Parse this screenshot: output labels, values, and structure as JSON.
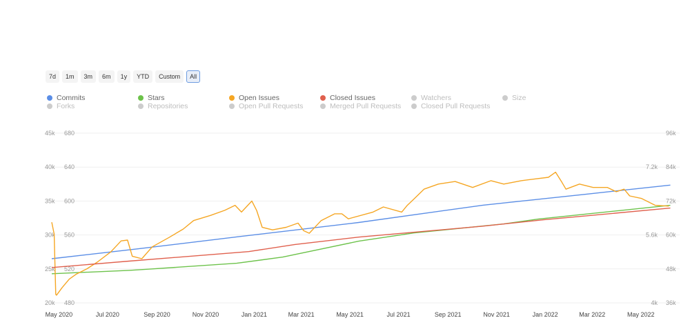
{
  "range_buttons": [
    {
      "label": "7d"
    },
    {
      "label": "1m"
    },
    {
      "label": "3m"
    },
    {
      "label": "6m"
    },
    {
      "label": "1y"
    },
    {
      "label": "YTD"
    },
    {
      "label": "Custom"
    },
    {
      "label": "All",
      "active": true
    }
  ],
  "legend": [
    {
      "label": "Commits",
      "color": "#5b8ee6",
      "active": true
    },
    {
      "label": "Stars",
      "color": "#6cc24a",
      "active": true
    },
    {
      "label": "Open Issues",
      "color": "#f5a623",
      "active": true
    },
    {
      "label": "Closed Issues",
      "color": "#e0604d",
      "active": true
    },
    {
      "label": "Watchers",
      "color": "#cccccc",
      "active": false
    },
    {
      "label": "Size",
      "color": "#cccccc",
      "active": false
    },
    {
      "label": "Forks",
      "color": "#cccccc",
      "active": false
    },
    {
      "label": "Repositories",
      "color": "#cccccc",
      "active": false
    },
    {
      "label": "Open Pull Requests",
      "color": "#cccccc",
      "active": false
    },
    {
      "label": "Merged Pull Requests",
      "color": "#cccccc",
      "active": false
    },
    {
      "label": "Closed Pull Requests",
      "color": "#cccccc",
      "active": false
    }
  ],
  "chart_data": {
    "type": "line",
    "grid": true,
    "xlim": [
      "2020-04-22",
      "2022-06-10"
    ],
    "x_ticks": [
      {
        "date": "2020-05-01",
        "label": "May 2020"
      },
      {
        "date": "2020-07-01",
        "label": "Jul 2020"
      },
      {
        "date": "2020-09-01",
        "label": "Sep 2020"
      },
      {
        "date": "2020-11-01",
        "label": "Nov 2020"
      },
      {
        "date": "2021-01-01",
        "label": "Jan 2021"
      },
      {
        "date": "2021-03-01",
        "label": "Mar 2021"
      },
      {
        "date": "2021-05-01",
        "label": "May 2021"
      },
      {
        "date": "2021-07-01",
        "label": "Jul 2021"
      },
      {
        "date": "2021-09-01",
        "label": "Sep 2021"
      },
      {
        "date": "2021-11-01",
        "label": "Nov 2021"
      },
      {
        "date": "2022-01-01",
        "label": "Jan 2022"
      },
      {
        "date": "2022-03-01",
        "label": "Mar 2022"
      },
      {
        "date": "2022-05-01",
        "label": "May 2022"
      }
    ],
    "axes": {
      "left1": {
        "range": [
          20000,
          45000
        ],
        "ticks": [
          "20k",
          "25k",
          "30k",
          "35k",
          "40k",
          "45k"
        ]
      },
      "left2": {
        "range": [
          480,
          680
        ],
        "ticks": [
          "480",
          "520",
          "560",
          "600",
          "640",
          "680"
        ]
      },
      "right1": {
        "range": [
          4000,
          8800
        ],
        "ticks": [
          "4k",
          "",
          "5.6k",
          "",
          "7.2k",
          ""
        ]
      },
      "right2": {
        "range": [
          36000,
          96000
        ],
        "ticks": [
          "36k",
          "48k",
          "60k",
          "72k",
          "84k",
          "96k"
        ]
      }
    },
    "series": [
      {
        "name": "Commits",
        "axis": "left1",
        "color": "#5b8ee6",
        "points": [
          [
            "2020-04-22",
            26500
          ],
          [
            "2020-08-08",
            27960
          ],
          [
            "2020-12-16",
            29800
          ],
          [
            "2021-05-12",
            31840
          ],
          [
            "2021-10-15",
            34390
          ],
          [
            "2022-02-22",
            36020
          ],
          [
            "2022-06-07",
            37350
          ]
        ]
      },
      {
        "name": "Stars",
        "axis": "right2",
        "color": "#6cc24a",
        "points": [
          [
            "2020-04-22",
            46300
          ],
          [
            "2020-07-28",
            47500
          ],
          [
            "2020-08-26",
            48000
          ],
          [
            "2020-12-10",
            50000
          ],
          [
            "2021-02-06",
            52200
          ],
          [
            "2021-05-12",
            57800
          ],
          [
            "2021-07-20",
            60700
          ],
          [
            "2021-11-10",
            63900
          ],
          [
            "2021-12-23",
            65600
          ],
          [
            "2022-06-07",
            70500
          ]
        ]
      },
      {
        "name": "Open Issues",
        "axis": "left2",
        "color": "#f5a623",
        "points": [
          [
            "2020-04-22",
            575
          ],
          [
            "2020-04-25",
            561
          ],
          [
            "2020-04-27",
            490
          ],
          [
            "2020-04-28",
            489
          ],
          [
            "2020-05-05",
            498
          ],
          [
            "2020-05-14",
            508
          ],
          [
            "2020-05-23",
            514
          ],
          [
            "2020-06-05",
            520
          ],
          [
            "2020-06-18",
            528
          ],
          [
            "2020-07-05",
            540
          ],
          [
            "2020-07-18",
            553
          ],
          [
            "2020-07-26",
            554
          ],
          [
            "2020-08-01",
            535
          ],
          [
            "2020-08-13",
            532
          ],
          [
            "2020-08-26",
            546
          ],
          [
            "2020-09-16",
            557
          ],
          [
            "2020-10-04",
            567
          ],
          [
            "2020-10-17",
            577
          ],
          [
            "2020-11-07",
            583
          ],
          [
            "2020-11-25",
            589
          ],
          [
            "2020-12-08",
            595
          ],
          [
            "2020-12-16",
            587
          ],
          [
            "2020-12-29",
            600
          ],
          [
            "2021-01-04",
            589
          ],
          [
            "2021-01-11",
            569
          ],
          [
            "2021-01-24",
            566
          ],
          [
            "2021-02-10",
            569
          ],
          [
            "2021-02-25",
            574
          ],
          [
            "2021-03-04",
            565
          ],
          [
            "2021-03-11",
            562
          ],
          [
            "2021-03-26",
            577
          ],
          [
            "2021-04-12",
            585
          ],
          [
            "2021-04-21",
            585
          ],
          [
            "2021-04-29",
            579
          ],
          [
            "2021-05-30",
            587
          ],
          [
            "2021-06-12",
            593
          ],
          [
            "2021-07-05",
            587
          ],
          [
            "2021-07-12",
            595
          ],
          [
            "2021-07-20",
            602
          ],
          [
            "2021-08-02",
            614
          ],
          [
            "2021-08-20",
            620
          ],
          [
            "2021-09-10",
            623
          ],
          [
            "2021-10-02",
            616
          ],
          [
            "2021-10-25",
            624
          ],
          [
            "2021-11-10",
            620
          ],
          [
            "2021-12-02",
            624
          ],
          [
            "2021-12-19",
            626
          ],
          [
            "2022-01-05",
            628
          ],
          [
            "2022-01-14",
            634
          ],
          [
            "2022-01-22",
            622
          ],
          [
            "2022-01-27",
            614
          ],
          [
            "2022-02-13",
            620
          ],
          [
            "2022-03-02",
            616
          ],
          [
            "2022-03-20",
            616
          ],
          [
            "2022-03-31",
            611
          ],
          [
            "2022-04-10",
            614
          ],
          [
            "2022-04-17",
            606
          ],
          [
            "2022-05-02",
            603
          ],
          [
            "2022-05-19",
            595
          ],
          [
            "2022-06-05",
            594
          ]
        ]
      },
      {
        "name": "Closed Issues",
        "axis": "right1",
        "color": "#e0604d",
        "points": [
          [
            "2020-04-22",
            5000
          ],
          [
            "2020-07-28",
            5180
          ],
          [
            "2020-12-25",
            5450
          ],
          [
            "2021-02-21",
            5650
          ],
          [
            "2021-05-12",
            5860
          ],
          [
            "2021-10-15",
            6170
          ],
          [
            "2021-12-30",
            6350
          ],
          [
            "2022-06-07",
            6680
          ]
        ]
      }
    ]
  }
}
